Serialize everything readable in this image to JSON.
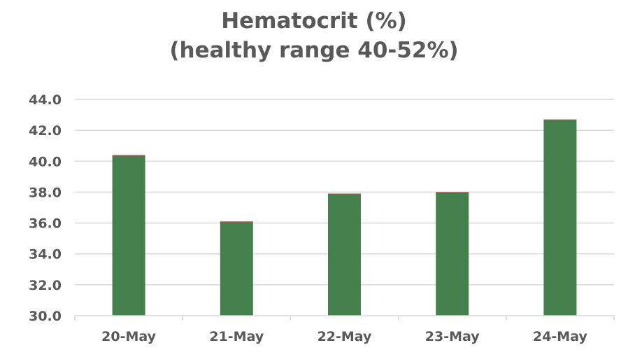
{
  "chart_data": {
    "type": "bar",
    "title": "Hematocrit (%)",
    "subtitle": "(healthy range 40-52%)",
    "xlabel": "",
    "ylabel": "",
    "categories": [
      "20-May",
      "21-May",
      "22-May",
      "23-May",
      "24-May"
    ],
    "values": [
      40.4,
      36.1,
      37.9,
      38.0,
      42.7
    ],
    "ylim": [
      30.0,
      44.0
    ],
    "yticks": [
      "30.0",
      "32.0",
      "34.0",
      "36.0",
      "38.0",
      "40.0",
      "42.0",
      "44.0"
    ],
    "grid": true,
    "legend": "none",
    "colors": {
      "bar": "#44804c",
      "bar_top": "#c0504d",
      "grid": "#d9d9d9",
      "axis": "#d9d9d9",
      "text": "#595959"
    }
  }
}
